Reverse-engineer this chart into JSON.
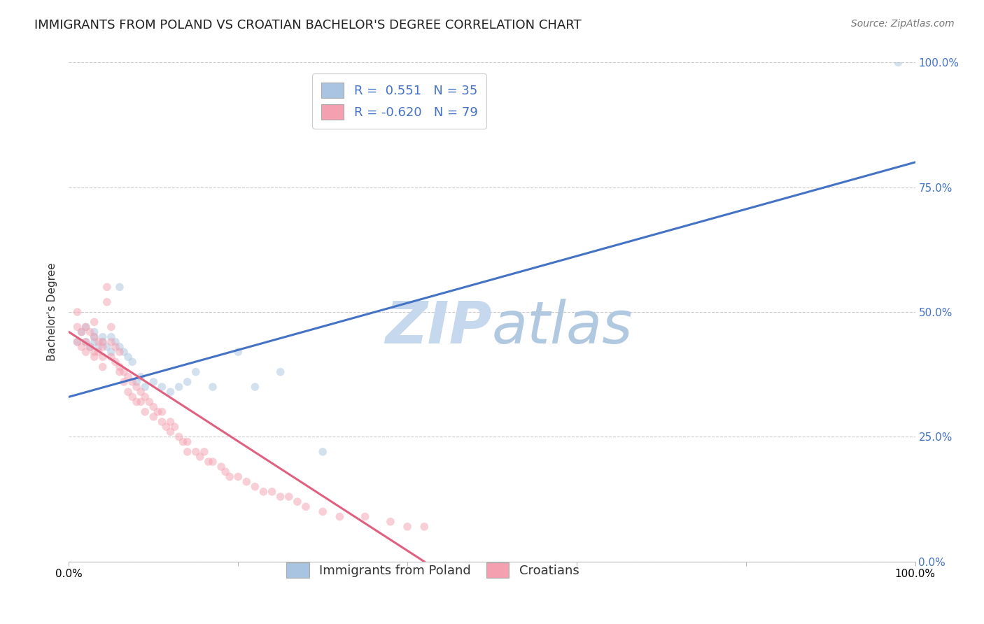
{
  "title": "IMMIGRANTS FROM POLAND VS CROATIAN BACHELOR'S DEGREE CORRELATION CHART",
  "source": "Source: ZipAtlas.com",
  "ylabel": "Bachelor's Degree",
  "ytick_labels": [
    "0.0%",
    "25.0%",
    "50.0%",
    "75.0%",
    "100.0%"
  ],
  "ytick_values": [
    0.0,
    0.25,
    0.5,
    0.75,
    1.0
  ],
  "xlim": [
    0.0,
    1.0
  ],
  "ylim": [
    0.0,
    1.0
  ],
  "blue_R": 0.551,
  "blue_N": 35,
  "pink_R": -0.62,
  "pink_N": 79,
  "blue_color": "#a8c4e0",
  "pink_color": "#f4a0b0",
  "blue_line_color": "#4472c4",
  "pink_line_color": "#e06080",
  "watermark_color": "#d0dff0",
  "legend_label_blue": "Immigrants from Poland",
  "legend_label_pink": "Croatians",
  "blue_scatter_x": [
    0.01,
    0.015,
    0.02,
    0.02,
    0.025,
    0.03,
    0.03,
    0.03,
    0.035,
    0.04,
    0.04,
    0.045,
    0.05,
    0.05,
    0.055,
    0.06,
    0.06,
    0.065,
    0.07,
    0.075,
    0.08,
    0.085,
    0.09,
    0.1,
    0.11,
    0.12,
    0.13,
    0.14,
    0.15,
    0.17,
    0.2,
    0.22,
    0.25,
    0.3,
    0.98
  ],
  "blue_scatter_y": [
    0.44,
    0.46,
    0.44,
    0.47,
    0.43,
    0.45,
    0.44,
    0.46,
    0.43,
    0.45,
    0.44,
    0.43,
    0.45,
    0.42,
    0.44,
    0.55,
    0.43,
    0.42,
    0.41,
    0.4,
    0.36,
    0.37,
    0.35,
    0.36,
    0.35,
    0.34,
    0.35,
    0.36,
    0.38,
    0.35,
    0.42,
    0.35,
    0.38,
    0.22,
    1.0
  ],
  "pink_scatter_x": [
    0.01,
    0.01,
    0.01,
    0.015,
    0.015,
    0.02,
    0.02,
    0.02,
    0.025,
    0.025,
    0.03,
    0.03,
    0.03,
    0.03,
    0.035,
    0.035,
    0.04,
    0.04,
    0.04,
    0.04,
    0.045,
    0.045,
    0.05,
    0.05,
    0.05,
    0.055,
    0.055,
    0.06,
    0.06,
    0.06,
    0.065,
    0.065,
    0.07,
    0.07,
    0.075,
    0.075,
    0.08,
    0.08,
    0.085,
    0.085,
    0.09,
    0.09,
    0.095,
    0.1,
    0.1,
    0.105,
    0.11,
    0.11,
    0.115,
    0.12,
    0.12,
    0.125,
    0.13,
    0.135,
    0.14,
    0.14,
    0.15,
    0.155,
    0.16,
    0.165,
    0.17,
    0.18,
    0.185,
    0.19,
    0.2,
    0.21,
    0.22,
    0.23,
    0.24,
    0.25,
    0.26,
    0.27,
    0.28,
    0.3,
    0.32,
    0.35,
    0.38,
    0.4,
    0.42
  ],
  "pink_scatter_y": [
    0.44,
    0.47,
    0.5,
    0.43,
    0.46,
    0.44,
    0.47,
    0.42,
    0.46,
    0.43,
    0.45,
    0.42,
    0.48,
    0.41,
    0.44,
    0.42,
    0.44,
    0.41,
    0.39,
    0.43,
    0.55,
    0.52,
    0.47,
    0.44,
    0.41,
    0.43,
    0.4,
    0.42,
    0.39,
    0.38,
    0.38,
    0.36,
    0.37,
    0.34,
    0.36,
    0.33,
    0.35,
    0.32,
    0.34,
    0.32,
    0.33,
    0.3,
    0.32,
    0.31,
    0.29,
    0.3,
    0.28,
    0.3,
    0.27,
    0.28,
    0.26,
    0.27,
    0.25,
    0.24,
    0.24,
    0.22,
    0.22,
    0.21,
    0.22,
    0.2,
    0.2,
    0.19,
    0.18,
    0.17,
    0.17,
    0.16,
    0.15,
    0.14,
    0.14,
    0.13,
    0.13,
    0.12,
    0.11,
    0.1,
    0.09,
    0.09,
    0.08,
    0.07,
    0.07
  ],
  "blue_line_x": [
    0.0,
    1.0
  ],
  "blue_line_y": [
    0.33,
    0.8
  ],
  "pink_line_x": [
    0.0,
    0.42
  ],
  "pink_line_y": [
    0.46,
    0.0
  ],
  "marker_size": 70,
  "marker_alpha": 0.5,
  "grid_color": "#cccccc",
  "grid_style": "--",
  "bg_color": "#ffffff",
  "title_fontsize": 13,
  "axis_label_fontsize": 11,
  "tick_fontsize": 11,
  "legend_fontsize": 13,
  "source_fontsize": 10
}
